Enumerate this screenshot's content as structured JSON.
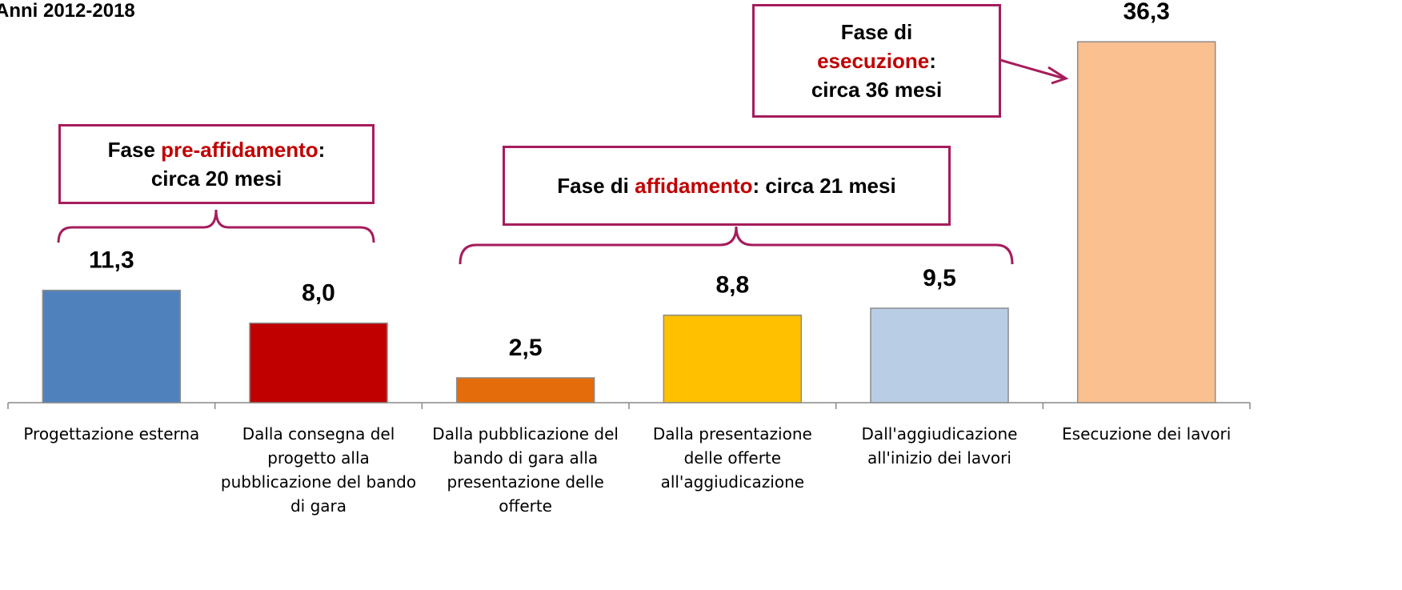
{
  "chart_data": {
    "type": "bar",
    "title": "Anni 2012-2018",
    "categories": [
      "Progettazione esterna",
      "Dalla consegna del progetto alla pubblicazione del bando di gara",
      "Dalla pubblicazione del bando di gara alla presentazione delle offerte",
      "Dalla presentazione delle offerte all'aggiudicazione",
      "Dall'aggiudicazione all'inizio dei lavori",
      "Esecuzione dei lavori"
    ],
    "values": [
      11.3,
      8.0,
      2.5,
      8.8,
      9.5,
      36.3
    ],
    "value_labels": [
      "11,3",
      "8,0",
      "2,5",
      "8,8",
      "9,5",
      "36,3"
    ],
    "colors": [
      "#4f81bd",
      "#c00000",
      "#e46c0a",
      "#ffc000",
      "#b9cde5",
      "#fac090"
    ],
    "annotations": [
      {
        "parts": [
          "Fase ",
          "pre-affidamento",
          ":",
          "circa 20 mesi"
        ]
      },
      {
        "parts": [
          "Fase di ",
          "affidamento",
          ": circa 21 mesi"
        ]
      },
      {
        "parts": [
          "Fase di",
          "esecuzione",
          ":",
          "circa 36 mesi"
        ]
      }
    ]
  }
}
